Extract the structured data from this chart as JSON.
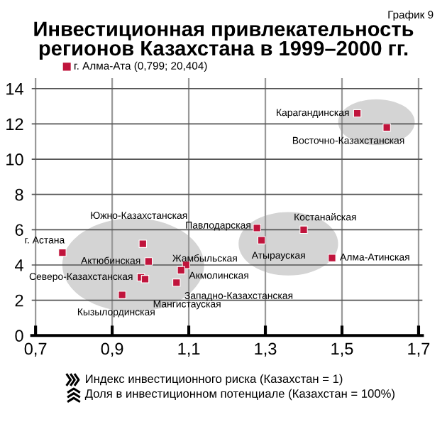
{
  "chart_data": {
    "type": "scatter",
    "title": "Инвестиционная привлекательность\nрегионов Казахстана в 1999–2000 гг.",
    "xlabel": "Индекс инвестиционного риска (Казахстан = 1)",
    "x": [
      0.77,
      0.98,
      0.995,
      0.975,
      0.986,
      0.926,
      1.093,
      1.08,
      1.068,
      1.278,
      1.29,
      1.4,
      1.474,
      1.54,
      1.617
    ],
    "series": [
      {
        "color": "#c0143c",
        "values": [
          4.7,
          5.2,
          4.2,
          3.3,
          3.2,
          2.3,
          4.0,
          3.7,
          3.0,
          6.1,
          5.4,
          6.0,
          4.4,
          12.6,
          11.8
        ]
      }
    ],
    "marker": "square",
    "annotations": [
      "График 9",
      "г. Алма-Ата (0,799; 20,404)",
      "Доля в инвестиционном потенциале (Казахстан = 100%)",
      {
        "text": "г. Астана",
        "x": 0.77,
        "y": 4.7
      },
      {
        "text": "Южно-Казахстанская",
        "x": 0.98,
        "y": 5.2
      },
      {
        "text": "Актюбинская",
        "x": 0.995,
        "y": 4.2
      },
      {
        "text": "Северо-Казахстанская",
        "x": 0.975,
        "y": 3.3
      },
      {
        "text": "Мангистауская",
        "x": 0.986,
        "y": 3.2
      },
      {
        "text": "Кызылординская",
        "x": 0.926,
        "y": 2.3
      },
      {
        "text": "Жамбыльская",
        "x": 1.093,
        "y": 4.0
      },
      {
        "text": "Акмолинская",
        "x": 1.08,
        "y": 3.7
      },
      {
        "text": "Западно-Казахстанская",
        "x": 1.068,
        "y": 3.0
      },
      {
        "text": "Павлодарская",
        "x": 1.278,
        "y": 6.1
      },
      {
        "text": "Атырауская",
        "x": 1.29,
        "y": 5.4
      },
      {
        "text": "Костанайская",
        "x": 1.4,
        "y": 6.0
      },
      {
        "text": "Алма-Атинская",
        "x": 1.474,
        "y": 4.4
      },
      {
        "text": "Карагандинская",
        "x": 1.54,
        "y": 12.6
      },
      {
        "text": "Восточно-Казахстанская",
        "x": 1.617,
        "y": 11.8
      }
    ],
    "xlim": [
      0.69,
      1.71
    ],
    "xticks": [
      {
        "value": 0.7,
        "label": "0,7"
      },
      {
        "value": 0.9,
        "label": "0,9"
      },
      {
        "value": 1.1,
        "label": "1,1"
      },
      {
        "value": 1.3,
        "label": "1,3"
      },
      {
        "value": 1.5,
        "label": "1,5"
      },
      {
        "value": 1.7,
        "label": "1,7"
      }
    ],
    "ylim": [
      0,
      14.6
    ],
    "yticks": [
      0,
      2,
      4,
      6,
      8,
      10,
      12,
      14
    ],
    "grid": true
  }
}
